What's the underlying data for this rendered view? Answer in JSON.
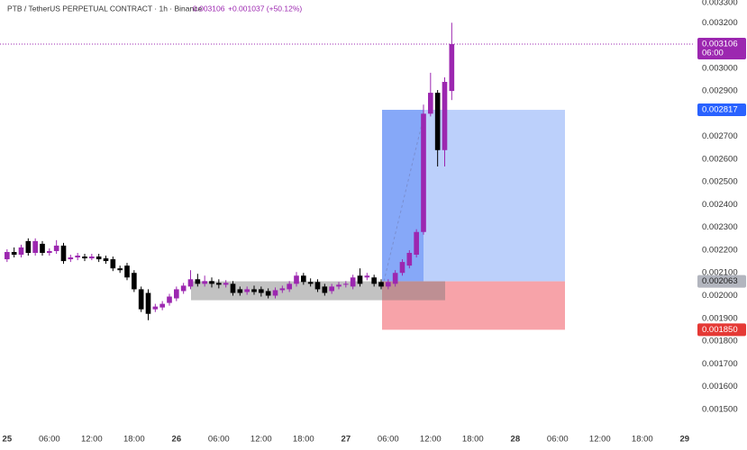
{
  "chart_data": {
    "type": "candlestick",
    "header": "PTB / TetherUS PERPETUAL CONTRACT · 1h · Binance",
    "change": "+0.001037 (+50.12%)",
    "up_color": "#9c27b0",
    "down_color": "#000000",
    "grid": false,
    "ylim": [
      0.00144,
      0.0033
    ],
    "yticks": [
      {
        "value": 0.0015,
        "label": "0.001500"
      },
      {
        "value": 0.0016,
        "label": "0.001600"
      },
      {
        "value": 0.0017,
        "label": "0.001700"
      },
      {
        "value": 0.0018,
        "label": "0.001800"
      },
      {
        "value": 0.0019,
        "label": "0.001900"
      },
      {
        "value": 0.002,
        "label": "0.002000"
      },
      {
        "value": 0.0021,
        "label": "0.002100"
      },
      {
        "value": 0.0022,
        "label": "0.002200"
      },
      {
        "value": 0.0023,
        "label": "0.002300"
      },
      {
        "value": 0.0024,
        "label": "0.002400"
      },
      {
        "value": 0.0025,
        "label": "0.002500"
      },
      {
        "value": 0.0026,
        "label": "0.002600"
      },
      {
        "value": 0.0027,
        "label": "0.002700"
      },
      {
        "value": 0.0029,
        "label": "0.002900"
      },
      {
        "value": 0.003,
        "label": "0.003000"
      },
      {
        "value": 0.0032,
        "label": "0.003200"
      },
      {
        "value": 0.0033,
        "label": "0.003300"
      }
    ],
    "xlim": [
      -1,
      97.3
    ],
    "xticks": [
      {
        "value": 0,
        "label": "25"
      },
      {
        "value": 6,
        "label": "06:00"
      },
      {
        "value": 12,
        "label": "12:00"
      },
      {
        "value": 18,
        "label": "18:00"
      },
      {
        "value": 24,
        "label": "26"
      },
      {
        "value": 30,
        "label": "06:00"
      },
      {
        "value": 36,
        "label": "12:00"
      },
      {
        "value": 42,
        "label": "18:00"
      },
      {
        "value": 48,
        "label": "27"
      },
      {
        "value": 54,
        "label": "06:00"
      },
      {
        "value": 60,
        "label": "12:00"
      },
      {
        "value": 66,
        "label": "18:00"
      },
      {
        "value": 72,
        "label": "28"
      },
      {
        "value": 78,
        "label": "06:00"
      },
      {
        "value": 84,
        "label": "12:00"
      },
      {
        "value": 90,
        "label": "18:00"
      },
      {
        "value": 96,
        "label": "29"
      }
    ],
    "last_price": {
      "value": 0.003106,
      "label": "0.003106",
      "countdown": "06:00"
    },
    "position": {
      "target": {
        "value": 0.002817,
        "label": "0.002817"
      },
      "entry": {
        "value": 0.002063,
        "label": "0.002063"
      },
      "stop": {
        "value": 0.00185,
        "label": "0.001850"
      }
    },
    "x": [
      0,
      1,
      2,
      3,
      4,
      5,
      6,
      7,
      8,
      9,
      10,
      11,
      12,
      13,
      14,
      15,
      16,
      17,
      18,
      19,
      20,
      21,
      22,
      23,
      24,
      25,
      26,
      27,
      28,
      29,
      30,
      31,
      32,
      33,
      34,
      35,
      36,
      37,
      38,
      39,
      40,
      41,
      42,
      43,
      44,
      45,
      46,
      47,
      48,
      49,
      50,
      51,
      52,
      53,
      54,
      55,
      56,
      57,
      58,
      59,
      60,
      61,
      62,
      63
    ],
    "open": [
      0.00216,
      0.002192,
      0.00218,
      0.00224,
      0.002188,
      0.002228,
      0.002188,
      0.002196,
      0.00222,
      0.00216,
      0.002168,
      0.002172,
      0.002164,
      0.002172,
      0.002164,
      0.00216,
      0.00212,
      0.002132,
      0.0021,
      0.002028,
      0.002012,
      0.00194,
      0.001948,
      0.001968,
      0.001988,
      0.00202,
      0.00204,
      0.002072,
      0.002052,
      0.002064,
      0.002056,
      0.002048,
      0.002052,
      0.002028,
      0.002016,
      0.002028,
      0.002028,
      0.00202,
      0.002,
      0.002024,
      0.002028,
      0.002052,
      0.002088,
      0.00206,
      0.00206,
      0.00204,
      0.00202,
      0.00204,
      0.002048,
      0.00204,
      0.002088,
      0.00208,
      0.00208,
      0.00206,
      0.00204,
      0.002052,
      0.0021,
      0.002132,
      0.00218,
      0.00228,
      0.0028,
      0.002892,
      0.00264,
      0.0029
    ],
    "high": [
      0.002204,
      0.002212,
      0.002224,
      0.002252,
      0.002252,
      0.00224,
      0.002208,
      0.002244,
      0.002232,
      0.00218,
      0.002188,
      0.002184,
      0.002184,
      0.002184,
      0.002176,
      0.002172,
      0.002132,
      0.002144,
      0.002112,
      0.00204,
      0.002028,
      0.001964,
      0.001976,
      0.002008,
      0.00204,
      0.002056,
      0.002112,
      0.002096,
      0.002088,
      0.00208,
      0.002072,
      0.002068,
      0.002064,
      0.00204,
      0.00204,
      0.002044,
      0.00204,
      0.002032,
      0.002036,
      0.002044,
      0.002064,
      0.002104,
      0.0021,
      0.002076,
      0.002072,
      0.002052,
      0.002052,
      0.00206,
      0.002064,
      0.002092,
      0.00212,
      0.0021,
      0.002092,
      0.002072,
      0.002072,
      0.002112,
      0.00216,
      0.0022,
      0.002292,
      0.00284,
      0.00298,
      0.002904,
      0.00296,
      0.0032
    ],
    "low": [
      0.002148,
      0.002168,
      0.002168,
      0.002176,
      0.002176,
      0.002176,
      0.002176,
      0.002184,
      0.00214,
      0.002148,
      0.002156,
      0.002152,
      0.002156,
      0.002148,
      0.00214,
      0.002108,
      0.0021,
      0.002068,
      0.002016,
      0.001928,
      0.001892,
      0.001928,
      0.001936,
      0.001956,
      0.001976,
      0.002008,
      0.002028,
      0.00204,
      0.00204,
      0.002036,
      0.002032,
      0.002036,
      0.002,
      0.002,
      0.002004,
      0.002004,
      0.001996,
      0.001988,
      0.001988,
      0.002012,
      0.002016,
      0.00204,
      0.002048,
      0.00204,
      0.002016,
      0.002,
      0.002008,
      0.002028,
      0.002036,
      0.002028,
      0.00204,
      0.002068,
      0.00204,
      0.002028,
      0.002028,
      0.00204,
      0.002088,
      0.00212,
      0.002168,
      0.002268,
      0.002788,
      0.002568,
      0.002568,
      0.00286
    ],
    "close": [
      0.002192,
      0.00218,
      0.002212,
      0.002188,
      0.00224,
      0.002188,
      0.002196,
      0.00222,
      0.002152,
      0.002168,
      0.002176,
      0.002164,
      0.002172,
      0.00216,
      0.002152,
      0.00212,
      0.002112,
      0.00208,
      0.002028,
      0.00194,
      0.00192,
      0.001952,
      0.001964,
      0.001996,
      0.002028,
      0.002044,
      0.002072,
      0.002052,
      0.002064,
      0.002052,
      0.002048,
      0.002056,
      0.002012,
      0.002012,
      0.002028,
      0.002016,
      0.002012,
      0.002,
      0.002024,
      0.002032,
      0.002052,
      0.002088,
      0.00206,
      0.002052,
      0.002028,
      0.002012,
      0.00204,
      0.002048,
      0.002052,
      0.00208,
      0.002052,
      0.002088,
      0.002052,
      0.00204,
      0.00206,
      0.0021,
      0.002148,
      0.002188,
      0.00228,
      0.0028,
      0.002892,
      0.00264,
      0.00294,
      0.003106
    ]
  }
}
